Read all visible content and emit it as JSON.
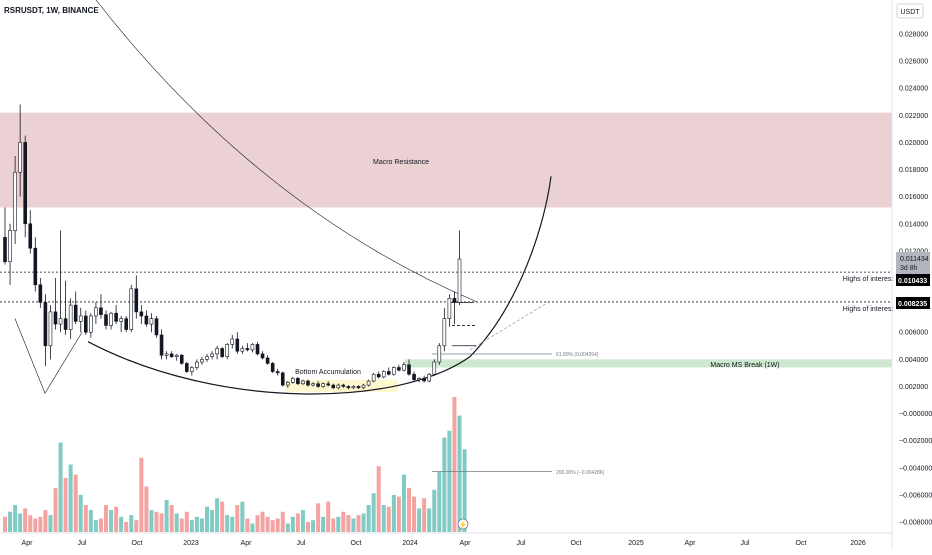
{
  "header": {
    "symbol": "RSRUSDT, 1W, BINANCE"
  },
  "price_axis": {
    "currency": "USDT",
    "ticks": [
      "0.028000",
      "0.026000",
      "0.024000",
      "0.022000",
      "0.020000",
      "0.018000",
      "0.016000",
      "0.014000",
      "0.012000",
      "0.010000",
      "0.008000",
      "0.006000",
      "0.004000",
      "0.002000",
      "−0.000000",
      "−0.002000",
      "−0.004000",
      "−0.006000",
      "−0.008000"
    ],
    "tick_values": [
      0.028,
      0.026,
      0.024,
      0.022,
      0.02,
      0.018,
      0.016,
      0.014,
      0.012,
      0.01,
      0.008,
      0.006,
      0.004,
      0.002,
      0.0,
      -0.002,
      -0.004,
      -0.006,
      -0.008
    ],
    "current_price": "0.011434",
    "countdown": "3d 8h",
    "high_label_1": "0.010433",
    "high_label_2": "0.008235"
  },
  "time_axis": {
    "labels": [
      "Apr",
      "Jul",
      "Oct",
      "2023",
      "Apr",
      "Jul",
      "Oct",
      "2024",
      "Apr",
      "Jul",
      "Oct",
      "2025",
      "Apr",
      "Jul",
      "Oct",
      "2026"
    ]
  },
  "annotations": {
    "macro_resistance": "Macro Resistance",
    "bottom_accumulation": "Bottom Accumulation",
    "highs_of_interest_1": "Highs of interest",
    "highs_of_interest_2": "Highs of interest",
    "fib_618": "61.80% (0.004394)",
    "fib_200": "200.00% (−0.004286)",
    "macro_ms_break": "Macro MS Break (1W)"
  },
  "colors": {
    "up": "#26a69a",
    "down": "#ef5350",
    "resistance_zone": "#e8c9cd",
    "ms_break_zone": "#c8e6c9",
    "volume_up": "#80cbc4",
    "volume_down": "#f4a3a1"
  },
  "chart_data": {
    "type": "candlestick",
    "symbol": "RSRUSDT",
    "interval": "1W",
    "exchange": "BINANCE",
    "ylim": [
      -0.0085,
      0.0295
    ],
    "candles": [
      {
        "o": 0.013,
        "h": 0.0152,
        "l": 0.011,
        "c": 0.0112
      },
      {
        "o": 0.0112,
        "h": 0.014,
        "l": 0.0095,
        "c": 0.0135
      },
      {
        "o": 0.0135,
        "h": 0.019,
        "l": 0.0125,
        "c": 0.0178
      },
      {
        "o": 0.0178,
        "h": 0.0228,
        "l": 0.016,
        "c": 0.02
      },
      {
        "o": 0.02,
        "h": 0.0205,
        "l": 0.013,
        "c": 0.014
      },
      {
        "o": 0.014,
        "h": 0.015,
        "l": 0.0118,
        "c": 0.0122
      },
      {
        "o": 0.0122,
        "h": 0.013,
        "l": 0.009,
        "c": 0.0095
      },
      {
        "o": 0.0095,
        "h": 0.01,
        "l": 0.0078,
        "c": 0.0082
      },
      {
        "o": 0.0082,
        "h": 0.0088,
        "l": 0.0035,
        "c": 0.005
      },
      {
        "o": 0.005,
        "h": 0.008,
        "l": 0.004,
        "c": 0.0075
      },
      {
        "o": 0.0075,
        "h": 0.01,
        "l": 0.0062,
        "c": 0.0066
      },
      {
        "o": 0.0066,
        "h": 0.0135,
        "l": 0.006,
        "c": 0.007
      },
      {
        "o": 0.007,
        "h": 0.0098,
        "l": 0.0058,
        "c": 0.0062
      },
      {
        "o": 0.0062,
        "h": 0.0085,
        "l": 0.0055,
        "c": 0.008
      },
      {
        "o": 0.008,
        "h": 0.009,
        "l": 0.0066,
        "c": 0.0068
      },
      {
        "o": 0.0068,
        "h": 0.0078,
        "l": 0.006,
        "c": 0.0072
      },
      {
        "o": 0.0072,
        "h": 0.0076,
        "l": 0.0058,
        "c": 0.006
      },
      {
        "o": 0.006,
        "h": 0.0074,
        "l": 0.0056,
        "c": 0.0072
      },
      {
        "o": 0.0072,
        "h": 0.0082,
        "l": 0.0066,
        "c": 0.0078
      },
      {
        "o": 0.0078,
        "h": 0.0088,
        "l": 0.007,
        "c": 0.0073
      },
      {
        "o": 0.0073,
        "h": 0.0076,
        "l": 0.0062,
        "c": 0.0065
      },
      {
        "o": 0.0065,
        "h": 0.0075,
        "l": 0.0062,
        "c": 0.0074
      },
      {
        "o": 0.0074,
        "h": 0.008,
        "l": 0.0066,
        "c": 0.0068
      },
      {
        "o": 0.0068,
        "h": 0.0072,
        "l": 0.006,
        "c": 0.007
      },
      {
        "o": 0.007,
        "h": 0.0072,
        "l": 0.006,
        "c": 0.0062
      },
      {
        "o": 0.0062,
        "h": 0.0095,
        "l": 0.006,
        "c": 0.0092
      },
      {
        "o": 0.0092,
        "h": 0.0102,
        "l": 0.007,
        "c": 0.0075
      },
      {
        "o": 0.0075,
        "h": 0.008,
        "l": 0.0066,
        "c": 0.0072
      },
      {
        "o": 0.0072,
        "h": 0.0076,
        "l": 0.0064,
        "c": 0.0066
      },
      {
        "o": 0.0066,
        "h": 0.0074,
        "l": 0.006,
        "c": 0.007
      },
      {
        "o": 0.007,
        "h": 0.0072,
        "l": 0.0056,
        "c": 0.0058
      },
      {
        "o": 0.0058,
        "h": 0.0062,
        "l": 0.004,
        "c": 0.0043
      },
      {
        "o": 0.0043,
        "h": 0.0046,
        "l": 0.004,
        "c": 0.0044
      },
      {
        "o": 0.0044,
        "h": 0.0046,
        "l": 0.0041,
        "c": 0.0042
      },
      {
        "o": 0.0042,
        "h": 0.0044,
        "l": 0.0039,
        "c": 0.0043
      },
      {
        "o": 0.0043,
        "h": 0.0044,
        "l": 0.0036,
        "c": 0.0037
      },
      {
        "o": 0.0037,
        "h": 0.0038,
        "l": 0.003,
        "c": 0.0031
      },
      {
        "o": 0.0031,
        "h": 0.0035,
        "l": 0.0028,
        "c": 0.0034
      },
      {
        "o": 0.0034,
        "h": 0.004,
        "l": 0.0032,
        "c": 0.0038
      },
      {
        "o": 0.0038,
        "h": 0.0042,
        "l": 0.0036,
        "c": 0.004
      },
      {
        "o": 0.004,
        "h": 0.0044,
        "l": 0.0038,
        "c": 0.0042
      },
      {
        "o": 0.0042,
        "h": 0.0046,
        "l": 0.004,
        "c": 0.0044
      },
      {
        "o": 0.0044,
        "h": 0.005,
        "l": 0.004,
        "c": 0.0048
      },
      {
        "o": 0.0048,
        "h": 0.0049,
        "l": 0.0041,
        "c": 0.0042
      },
      {
        "o": 0.0042,
        "h": 0.0052,
        "l": 0.004,
        "c": 0.0051
      },
      {
        "o": 0.0051,
        "h": 0.0058,
        "l": 0.0048,
        "c": 0.0055
      },
      {
        "o": 0.0055,
        "h": 0.006,
        "l": 0.0044,
        "c": 0.0046
      },
      {
        "o": 0.0046,
        "h": 0.005,
        "l": 0.0044,
        "c": 0.0048
      },
      {
        "o": 0.0048,
        "h": 0.0052,
        "l": 0.0046,
        "c": 0.0047
      },
      {
        "o": 0.0047,
        "h": 0.0052,
        "l": 0.0045,
        "c": 0.0051
      },
      {
        "o": 0.0051,
        "h": 0.0053,
        "l": 0.0043,
        "c": 0.0044
      },
      {
        "o": 0.0044,
        "h": 0.0046,
        "l": 0.004,
        "c": 0.0041
      },
      {
        "o": 0.0041,
        "h": 0.0043,
        "l": 0.0036,
        "c": 0.0037
      },
      {
        "o": 0.0037,
        "h": 0.0038,
        "l": 0.003,
        "c": 0.0031
      },
      {
        "o": 0.0031,
        "h": 0.0033,
        "l": 0.0028,
        "c": 0.003
      },
      {
        "o": 0.003,
        "h": 0.0031,
        "l": 0.002,
        "c": 0.0021
      },
      {
        "o": 0.0021,
        "h": 0.0024,
        "l": 0.0019,
        "c": 0.0023
      },
      {
        "o": 0.0023,
        "h": 0.0027,
        "l": 0.0022,
        "c": 0.0026
      },
      {
        "o": 0.0026,
        "h": 0.0027,
        "l": 0.0021,
        "c": 0.0022
      },
      {
        "o": 0.0022,
        "h": 0.0025,
        "l": 0.0021,
        "c": 0.0024
      },
      {
        "o": 0.0024,
        "h": 0.0025,
        "l": 0.002,
        "c": 0.0021
      },
      {
        "o": 0.0021,
        "h": 0.0023,
        "l": 0.002,
        "c": 0.0022
      },
      {
        "o": 0.0022,
        "h": 0.0024,
        "l": 0.0019,
        "c": 0.002
      },
      {
        "o": 0.002,
        "h": 0.0023,
        "l": 0.0019,
        "c": 0.0022
      },
      {
        "o": 0.0022,
        "h": 0.0024,
        "l": 0.002,
        "c": 0.0021
      },
      {
        "o": 0.0021,
        "h": 0.0022,
        "l": 0.0018,
        "c": 0.0019
      },
      {
        "o": 0.0019,
        "h": 0.0022,
        "l": 0.0018,
        "c": 0.0021
      },
      {
        "o": 0.0021,
        "h": 0.0022,
        "l": 0.0019,
        "c": 0.002
      },
      {
        "o": 0.002,
        "h": 0.0021,
        "l": 0.0018,
        "c": 0.0019
      },
      {
        "o": 0.0019,
        "h": 0.0021,
        "l": 0.0018,
        "c": 0.002
      },
      {
        "o": 0.002,
        "h": 0.0021,
        "l": 0.0018,
        "c": 0.0019
      },
      {
        "o": 0.0019,
        "h": 0.0022,
        "l": 0.0018,
        "c": 0.0021
      },
      {
        "o": 0.0021,
        "h": 0.0025,
        "l": 0.002,
        "c": 0.0024
      },
      {
        "o": 0.0024,
        "h": 0.003,
        "l": 0.0023,
        "c": 0.0029
      },
      {
        "o": 0.0029,
        "h": 0.0031,
        "l": 0.0026,
        "c": 0.0027
      },
      {
        "o": 0.0027,
        "h": 0.0032,
        "l": 0.0026,
        "c": 0.0031
      },
      {
        "o": 0.0031,
        "h": 0.0034,
        "l": 0.0028,
        "c": 0.0029
      },
      {
        "o": 0.0029,
        "h": 0.0035,
        "l": 0.0028,
        "c": 0.0034
      },
      {
        "o": 0.0034,
        "h": 0.0036,
        "l": 0.0031,
        "c": 0.0032
      },
      {
        "o": 0.0032,
        "h": 0.0038,
        "l": 0.0031,
        "c": 0.0036
      },
      {
        "o": 0.0036,
        "h": 0.004,
        "l": 0.0028,
        "c": 0.0029
      },
      {
        "o": 0.0029,
        "h": 0.0031,
        "l": 0.0024,
        "c": 0.0025
      },
      {
        "o": 0.0025,
        "h": 0.0027,
        "l": 0.0023,
        "c": 0.0026
      },
      {
        "o": 0.0026,
        "h": 0.0028,
        "l": 0.0023,
        "c": 0.0024
      },
      {
        "o": 0.0024,
        "h": 0.003,
        "l": 0.0023,
        "c": 0.0029
      },
      {
        "o": 0.0029,
        "h": 0.004,
        "l": 0.0028,
        "c": 0.0038
      },
      {
        "o": 0.0038,
        "h": 0.0052,
        "l": 0.0036,
        "c": 0.005
      },
      {
        "o": 0.005,
        "h": 0.0078,
        "l": 0.0046,
        "c": 0.007
      },
      {
        "o": 0.007,
        "h": 0.0088,
        "l": 0.0064,
        "c": 0.0085
      },
      {
        "o": 0.0085,
        "h": 0.009,
        "l": 0.0066,
        "c": 0.0082
      },
      {
        "o": 0.0082,
        "h": 0.0135,
        "l": 0.008,
        "c": 0.0114
      }
    ],
    "volume": {
      "values": [
        0.9,
        1.2,
        1.6,
        1.1,
        1.4,
        1.0,
        0.8,
        0.9,
        1.3,
        1.0,
        2.6,
        5.3,
        3.2,
        4.0,
        3.4,
        2.2,
        1.6,
        1.3,
        0.7,
        0.8,
        1.6,
        1.3,
        1.5,
        0.9,
        0.6,
        1.0,
        0.7,
        4.4,
        2.7,
        1.3,
        1.2,
        1.1,
        1.9,
        1.6,
        1.1,
        0.8,
        1.2,
        0.7,
        0.9,
        0.8,
        1.5,
        1.3,
        2.0,
        1.8,
        1.0,
        0.9,
        1.6,
        1.8,
        0.8,
        0.5,
        1.0,
        1.2,
        0.9,
        0.7,
        0.8,
        1.2,
        0.5,
        0.9,
        1.1,
        1.3,
        0.6,
        0.7,
        1.7,
        0.9,
        1.8,
        0.8,
        0.9,
        1.2,
        1.0,
        0.8,
        1.0,
        1.1,
        1.6,
        2.3,
        3.9,
        1.6,
        1.5,
        2.2,
        2.1,
        3.4,
        2.6,
        2.1,
        1.4,
        2.0,
        1.4,
        2.5,
        3.6,
        5.6,
        6.0,
        8.0,
        6.9,
        4.9
      ],
      "note": "relative volume"
    },
    "levels": {
      "highs_of_interest": [
        0.010433,
        0.008235
      ],
      "fib_618": 0.004394,
      "fib_200": -0.004286,
      "macro_resistance_zone": [
        0.0152,
        0.0222
      ],
      "macro_ms_break_zone": [
        0.0034,
        0.004
      ]
    }
  }
}
